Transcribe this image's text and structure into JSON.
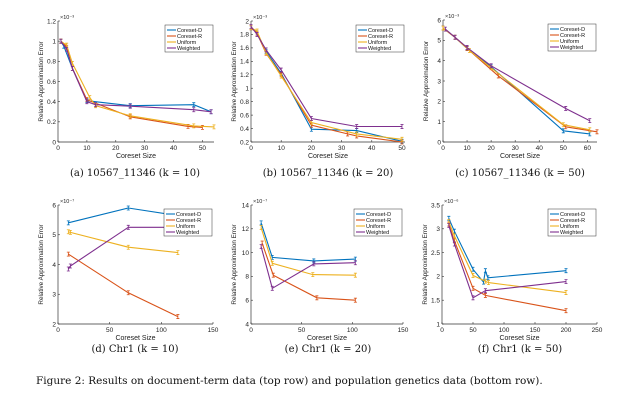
{
  "colors": {
    "Coreset-D": "#0072BD",
    "Coreset-R": "#D95319",
    "Uniform": "#EDB120",
    "Weighted": "#7E2F8E"
  },
  "figure_caption": "Figure 2: Results on document-term data (top row) and population genetics data (bottom row).",
  "chart_data": [
    {
      "type": "line",
      "caption": "(a) 10567_11346 (k = 10)",
      "xlabel": "Coreset Size",
      "ylabel": "Relative Approximation Error",
      "y_exponent": "×10⁻³",
      "xlim": [
        0,
        54
      ],
      "ylim": [
        0,
        1.2
      ],
      "xticks": [
        "0",
        "10",
        "20",
        "30",
        "40",
        "50"
      ],
      "yticks": [
        "0",
        "0.2",
        "0.4",
        "0.6",
        "0.8",
        "1",
        "1.2"
      ],
      "legend": "top-right",
      "series": [
        {
          "name": "Coreset-D",
          "x": [
            1,
            2,
            5,
            10,
            25,
            47,
            53
          ],
          "y": [
            1.0,
            0.95,
            0.73,
            0.41,
            0.36,
            0.37,
            0.3
          ]
        },
        {
          "name": "Coreset-R",
          "x": [
            1,
            3,
            5,
            10,
            25,
            45,
            50
          ],
          "y": [
            1.0,
            0.94,
            0.73,
            0.42,
            0.25,
            0.155,
            0.145
          ]
        },
        {
          "name": "Uniform",
          "x": [
            1,
            3,
            5,
            11,
            13,
            25,
            47,
            54
          ],
          "y": [
            1.0,
            0.96,
            0.78,
            0.44,
            0.36,
            0.26,
            0.16,
            0.15
          ]
        },
        {
          "name": "Weighted",
          "x": [
            1,
            3,
            5,
            10,
            13,
            25,
            47,
            53
          ],
          "y": [
            1.0,
            0.92,
            0.73,
            0.4,
            0.37,
            0.355,
            0.32,
            0.3
          ]
        }
      ]
    },
    {
      "type": "line",
      "caption": "(b) 10567_11346 (k = 20)",
      "xlabel": "Coreset Size",
      "ylabel": "Relative Approximation Error",
      "y_exponent": "×10⁻³",
      "xlim": [
        0,
        51
      ],
      "ylim": [
        0.2,
        2
      ],
      "xticks": [
        "0",
        "10",
        "20",
        "30",
        "40",
        "50"
      ],
      "yticks": [
        "0.2",
        "0.4",
        "0.6",
        "0.8",
        "1",
        "1.2",
        "1.4",
        "1.6",
        "1.8",
        "2"
      ],
      "legend": "top-right",
      "series": [
        {
          "name": "Coreset-D",
          "x": [
            0,
            2,
            5,
            10,
            20,
            35,
            50
          ],
          "y": [
            1.9,
            1.82,
            1.55,
            1.22,
            0.39,
            0.37,
            0.21
          ]
        },
        {
          "name": "Coreset-R",
          "x": [
            0,
            2,
            5,
            10,
            20,
            32,
            35,
            50
          ],
          "y": [
            1.9,
            1.82,
            1.52,
            1.2,
            0.45,
            0.32,
            0.29,
            0.2
          ]
        },
        {
          "name": "Uniform",
          "x": [
            0,
            2,
            5,
            10,
            20,
            35,
            50
          ],
          "y": [
            1.9,
            1.85,
            1.53,
            1.18,
            0.49,
            0.32,
            0.24
          ]
        },
        {
          "name": "Weighted",
          "x": [
            0,
            2,
            5,
            10,
            20,
            35,
            50
          ],
          "y": [
            1.92,
            1.8,
            1.57,
            1.27,
            0.55,
            0.43,
            0.43
          ]
        }
      ]
    },
    {
      "type": "line",
      "caption": "(c) 10567_11346 (k = 50)",
      "xlabel": "Coreset Size",
      "ylabel": "Relative Approximation Error",
      "y_exponent": "×10⁻³",
      "xlim": [
        0,
        64
      ],
      "ylim": [
        0,
        6
      ],
      "xticks": [
        "0",
        "10",
        "20",
        "30",
        "40",
        "50",
        "60"
      ],
      "yticks": [
        "0",
        "1",
        "2",
        "3",
        "4",
        "5",
        "6"
      ],
      "legend": "top-right",
      "series": [
        {
          "name": "Coreset-D",
          "x": [
            0,
            5,
            10,
            20,
            50,
            61
          ],
          "y": [
            5.6,
            5.15,
            4.6,
            3.7,
            0.55,
            0.4
          ]
        },
        {
          "name": "Coreset-R",
          "x": [
            0,
            5,
            10,
            23,
            51,
            64
          ],
          "y": [
            5.6,
            5.15,
            4.6,
            3.25,
            0.75,
            0.5
          ]
        },
        {
          "name": "Uniform",
          "x": [
            0,
            5,
            11,
            20,
            50,
            61
          ],
          "y": [
            5.6,
            5.15,
            4.5,
            3.65,
            0.85,
            0.6
          ]
        },
        {
          "name": "Weighted",
          "x": [
            1,
            5,
            10,
            20,
            51,
            61
          ],
          "y": [
            5.55,
            5.15,
            4.65,
            3.75,
            1.65,
            1.05
          ]
        }
      ]
    },
    {
      "type": "line",
      "caption": "(d) Chr1 (k = 10)",
      "xlabel": "Coreset Size",
      "ylabel": "Relative Approximation Error",
      "y_exponent": "×10⁻⁷",
      "xlim": [
        0,
        150
      ],
      "ylim": [
        2,
        6
      ],
      "xticks": [
        "0",
        "50",
        "100",
        "150"
      ],
      "yticks": [
        "2",
        "3",
        "4",
        "5",
        "6"
      ],
      "legend": "top-right",
      "series": [
        {
          "name": "Coreset-D",
          "x": [
            10,
            68,
            115
          ],
          "y": [
            5.4,
            5.9,
            5.65
          ]
        },
        {
          "name": "Coreset-R",
          "x": [
            10,
            68,
            116
          ],
          "y": [
            4.35,
            3.05,
            2.25
          ]
        },
        {
          "name": "Uniform",
          "x": [
            10,
            12,
            68,
            116
          ],
          "y": [
            5.1,
            5.08,
            4.58,
            4.4
          ]
        },
        {
          "name": "Weighted",
          "x": [
            10,
            12,
            68,
            116
          ],
          "y": [
            3.85,
            3.95,
            5.25,
            5.25
          ]
        }
      ]
    },
    {
      "type": "line",
      "caption": "(e) Chr1 (k = 20)",
      "xlabel": "Coreset Size",
      "ylabel": "Relative Approximation Error",
      "y_exponent": "×10⁻⁷",
      "xlim": [
        0,
        150
      ],
      "ylim": [
        4,
        14
      ],
      "xticks": [
        "0",
        "50",
        "100",
        "150"
      ],
      "yticks": [
        "4",
        "6",
        "8",
        "10",
        "12",
        "14"
      ],
      "legend": "top-right",
      "series": [
        {
          "name": "Coreset-D",
          "x": [
            10,
            21,
            62,
            103
          ],
          "y": [
            12.5,
            9.6,
            9.3,
            9.45
          ]
        },
        {
          "name": "Coreset-R",
          "x": [
            11,
            22,
            65,
            103
          ],
          "y": [
            10.8,
            8.1,
            6.2,
            6.0
          ]
        },
        {
          "name": "Uniform",
          "x": [
            10,
            21,
            61,
            103
          ],
          "y": [
            12.1,
            9.1,
            8.15,
            8.1
          ]
        },
        {
          "name": "Weighted",
          "x": [
            10,
            21,
            62,
            103
          ],
          "y": [
            10.5,
            7.0,
            9.05,
            9.15
          ]
        }
      ]
    },
    {
      "type": "line",
      "caption": "(f) Chr1 (k = 50)",
      "xlabel": "Coreset Size",
      "ylabel": "Relative Approximation Error",
      "y_exponent": "×10⁻⁶",
      "xlim": [
        0,
        250
      ],
      "ylim": [
        1,
        3.5
      ],
      "xticks": [
        "0",
        "50",
        "100",
        "150",
        "200",
        "250"
      ],
      "yticks": [
        "1",
        "1.5",
        "2",
        "2.5",
        "3",
        "3.5"
      ],
      "legend": "top-right",
      "series": [
        {
          "name": "Coreset-D",
          "x": [
            11,
            20,
            50,
            67,
            70,
            74,
            200
          ],
          "y": [
            3.22,
            2.95,
            2.15,
            1.88,
            2.12,
            1.97,
            2.12
          ]
        },
        {
          "name": "Coreset-R",
          "x": [
            11,
            20,
            50,
            70,
            200
          ],
          "y": [
            3.1,
            2.75,
            1.75,
            1.6,
            1.28
          ]
        },
        {
          "name": "Uniform",
          "x": [
            11,
            20,
            50,
            70,
            75,
            200
          ],
          "y": [
            3.15,
            2.85,
            2.02,
            1.9,
            1.87,
            1.66
          ]
        },
        {
          "name": "Weighted",
          "x": [
            11,
            20,
            50,
            70,
            200
          ],
          "y": [
            3.07,
            2.68,
            1.55,
            1.7,
            1.89
          ]
        }
      ]
    }
  ]
}
